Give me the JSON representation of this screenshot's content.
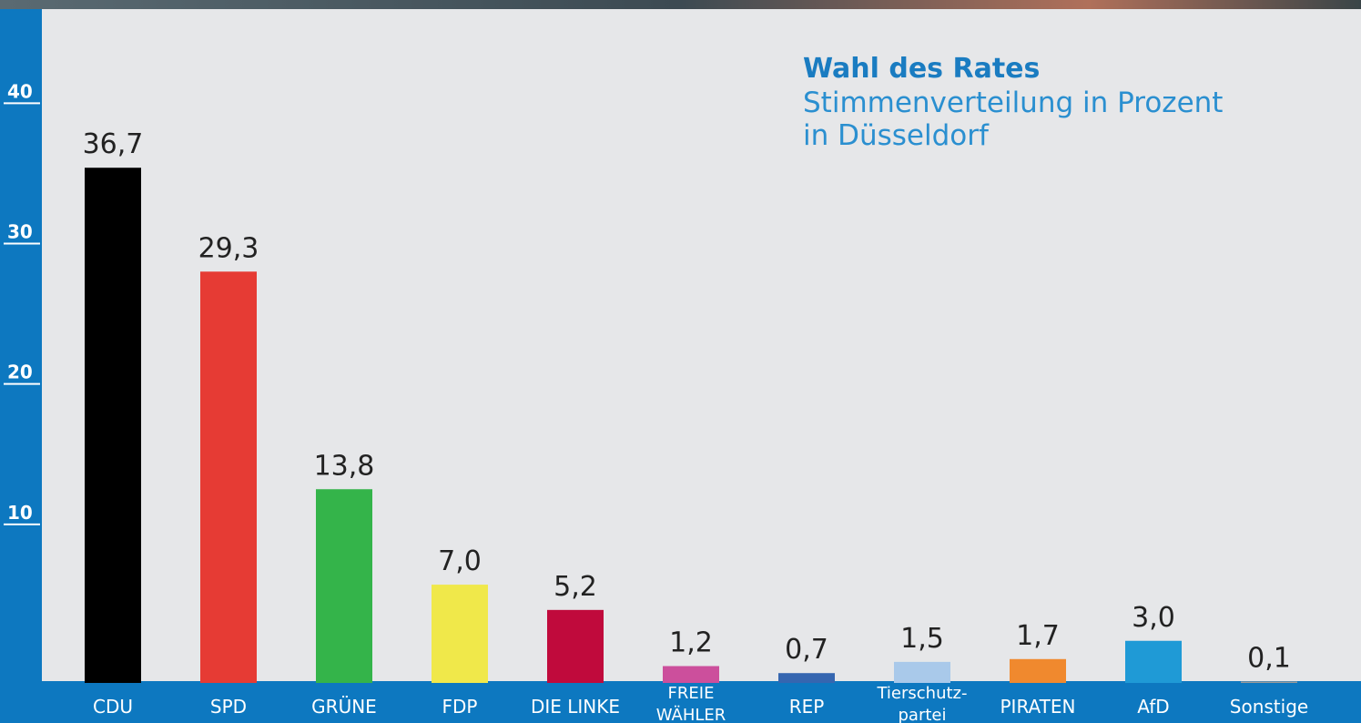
{
  "chart_data": {
    "type": "bar",
    "title": "Wahl des Rates",
    "subtitle": [
      "Stimmenverteilung in Prozent",
      "in Düsseldorf"
    ],
    "categories": [
      [
        "CDU"
      ],
      [
        "SPD"
      ],
      [
        "GRÜNE"
      ],
      [
        "FDP"
      ],
      [
        "DIE LINKE"
      ],
      [
        "FREIE",
        "WÄHLER"
      ],
      [
        "REP"
      ],
      [
        "Tierschutz-",
        "partei"
      ],
      [
        "PIRATEN"
      ],
      [
        "AfD"
      ],
      [
        "Sonstige"
      ]
    ],
    "values": [
      36.7,
      29.3,
      13.8,
      7.0,
      5.2,
      1.2,
      0.7,
      1.5,
      1.7,
      3.0,
      0.1
    ],
    "value_labels": [
      "36,7",
      "29,3",
      "13,8",
      "7,0",
      "5,2",
      "1,2",
      "0,7",
      "1,5",
      "1,7",
      "3,0",
      "0,1"
    ],
    "colors": [
      "#000000",
      "#e63b34",
      "#34b44a",
      "#f0e84a",
      "#c00a3c",
      "#cc4f9c",
      "#3566b0",
      "#a9c9ea",
      "#f0892e",
      "#1f9ad6",
      "#9a9a9a"
    ],
    "ylim": [
      0,
      48
    ],
    "yticks": [
      10,
      20,
      30,
      40
    ]
  }
}
